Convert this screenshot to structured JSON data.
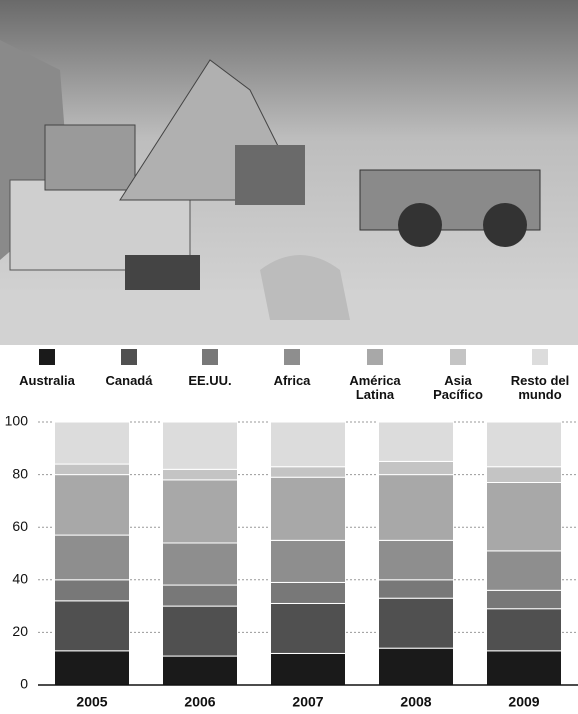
{
  "chart_data": {
    "type": "stacked-bar",
    "categories": [
      "2005",
      "2006",
      "2007",
      "2008",
      "2009"
    ],
    "series": [
      {
        "name": "Australia",
        "color": "#1a1a1a",
        "values": [
          13,
          11,
          12,
          14,
          13
        ]
      },
      {
        "name": "Canadá",
        "color": "#505050",
        "values": [
          19,
          19,
          19,
          19,
          16
        ]
      },
      {
        "name": "EE.UU.",
        "color": "#787878",
        "values": [
          8,
          8,
          8,
          7,
          7
        ]
      },
      {
        "name": "Africa",
        "color": "#8e8e8e",
        "values": [
          17,
          16,
          16,
          15,
          15
        ]
      },
      {
        "name": "América Latina",
        "color": "#a8a8a8",
        "values": [
          23,
          24,
          24,
          25,
          26
        ]
      },
      {
        "name": "Asia Pacífico",
        "color": "#c4c4c4",
        "values": [
          4,
          4,
          4,
          5,
          6
        ]
      },
      {
        "name": "Resto del mundo",
        "color": "#dcdcdc",
        "values": [
          16,
          18,
          17,
          15,
          17
        ]
      }
    ],
    "ylim": [
      0,
      100
    ],
    "yticks": [
      0,
      20,
      40,
      60,
      80,
      100
    ],
    "grid": true
  }
}
